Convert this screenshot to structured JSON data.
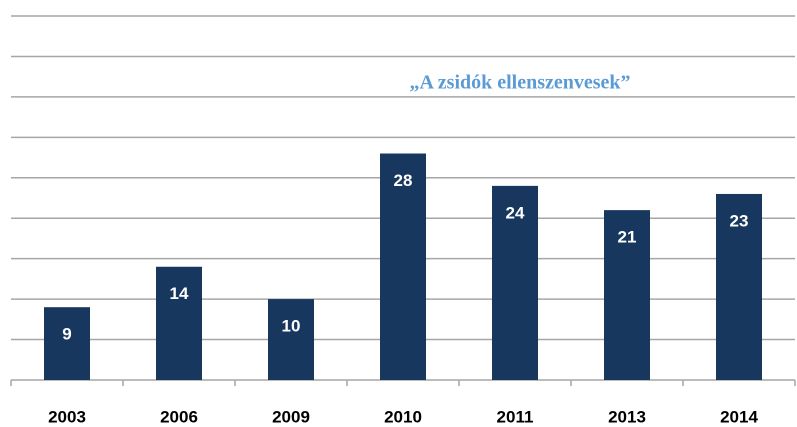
{
  "chart_data": {
    "type": "bar",
    "title": "„A zsidók ellenszenvesek”",
    "categories": [
      "2003",
      "2006",
      "2009",
      "2010",
      "2011",
      "2013",
      "2014"
    ],
    "values": [
      9,
      14,
      10,
      28,
      24,
      21,
      23
    ],
    "color": "#17375e",
    "ylim": [
      0,
      45
    ],
    "yticks": [
      0,
      5,
      10,
      15,
      20,
      25,
      30,
      35,
      40,
      45
    ],
    "grid": true
  }
}
